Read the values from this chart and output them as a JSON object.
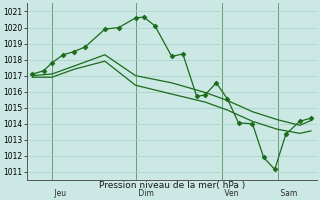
{
  "background_color": "#cce8e4",
  "grid_color": "#aad4cc",
  "line_color": "#1a6b1a",
  "xlabel": "Pression niveau de la mer( hPa )",
  "ylim": [
    1010.5,
    1021.5
  ],
  "yticks": [
    1011,
    1012,
    1013,
    1014,
    1015,
    1016,
    1017,
    1018,
    1019,
    1020,
    1021
  ],
  "xtick_labels": [
    " Jeu",
    "| Dim",
    "| Ven",
    "| Sam"
  ],
  "xtick_positions": [
    0.0,
    0.37,
    0.68,
    0.88
  ],
  "vline_positions": [
    0.07,
    0.37,
    0.68,
    0.88
  ],
  "line1_x": [
    0.0,
    0.04,
    0.07,
    0.11,
    0.15,
    0.19,
    0.26,
    0.31,
    0.37,
    0.4,
    0.44,
    0.5,
    0.54,
    0.59,
    0.62,
    0.66,
    0.7,
    0.74,
    0.79,
    0.83,
    0.87,
    0.91,
    0.96,
    1.0
  ],
  "line1_y": [
    1017.1,
    1017.3,
    1017.8,
    1018.3,
    1018.5,
    1018.8,
    1019.9,
    1020.0,
    1020.6,
    1020.65,
    1020.1,
    1018.2,
    1018.35,
    1015.7,
    1015.8,
    1016.55,
    1015.55,
    1014.05,
    1014.0,
    1011.9,
    1011.15,
    1013.35,
    1014.15,
    1014.35
  ],
  "line2_x": [
    0.0,
    0.07,
    0.15,
    0.26,
    0.37,
    0.5,
    0.62,
    0.7,
    0.79,
    0.88,
    0.96,
    1.0
  ],
  "line2_y": [
    1017.0,
    1017.1,
    1017.6,
    1018.3,
    1017.0,
    1016.55,
    1015.95,
    1015.45,
    1014.75,
    1014.25,
    1013.9,
    1014.2
  ],
  "line3_x": [
    0.0,
    0.07,
    0.15,
    0.26,
    0.37,
    0.5,
    0.62,
    0.7,
    0.79,
    0.88,
    0.96,
    1.0
  ],
  "line3_y": [
    1016.9,
    1016.9,
    1017.4,
    1017.9,
    1016.4,
    1015.85,
    1015.35,
    1014.85,
    1014.15,
    1013.65,
    1013.4,
    1013.55
  ]
}
